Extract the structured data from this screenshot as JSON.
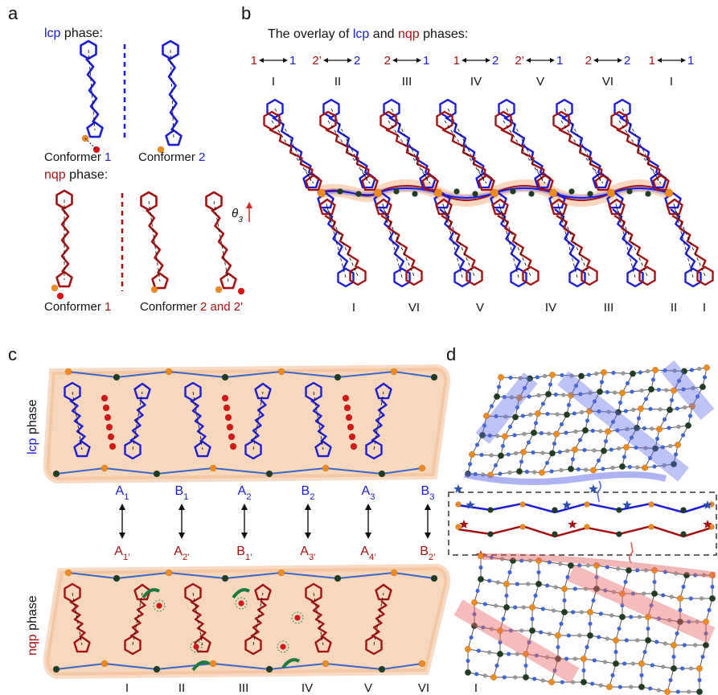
{
  "panels": {
    "a": {
      "label": "a",
      "lcp_heading": {
        "phase": "lcp",
        "text": "phase:"
      },
      "lcp_conformers": [
        {
          "text": "Conformer",
          "number": "1"
        },
        {
          "text": "Conformer",
          "number": "2"
        }
      ],
      "nqp_heading": {
        "phase": "nqp",
        "text": "phase:"
      },
      "nqp_conformers": [
        {
          "text": "Conformer",
          "number": "1"
        },
        {
          "text": "Conformer",
          "number": "2 and 2'"
        }
      ],
      "angle_label": {
        "symbol": "θ",
        "sub": "3"
      }
    },
    "b": {
      "label": "b",
      "title": {
        "prefix": "The overlay of",
        "phase1": "lcp",
        "middle": "and",
        "phase2": "nqp",
        "suffix": "phases:"
      },
      "pairs": [
        {
          "nqp": "1",
          "lcp": "1",
          "numeral": "I"
        },
        {
          "nqp": "2’",
          "lcp": "2",
          "numeral": "II"
        },
        {
          "nqp": "2",
          "lcp": "1",
          "numeral": "III"
        },
        {
          "nqp": "1",
          "lcp": "2",
          "numeral": "IV"
        },
        {
          "nqp": "2’",
          "lcp": "1",
          "numeral": "V"
        },
        {
          "nqp": "2",
          "lcp": "2",
          "numeral": "VI"
        },
        {
          "nqp": "1",
          "lcp": "1",
          "numeral": "I"
        }
      ],
      "bottom_numerals": [
        "I",
        "VI",
        "V",
        "IV",
        "III",
        "II",
        "I"
      ]
    },
    "c": {
      "label": "c",
      "lcp_side": {
        "phase": "lcp",
        "text": "phase"
      },
      "nqp_side": {
        "phase": "nqp",
        "text": "phase"
      },
      "lcp_sites": [
        {
          "letter": "A",
          "sub": "1"
        },
        {
          "letter": "B",
          "sub": "1"
        },
        {
          "letter": "A",
          "sub": "2"
        },
        {
          "letter": "B",
          "sub": "2"
        },
        {
          "letter": "A",
          "sub": "3"
        },
        {
          "letter": "B",
          "sub": "3"
        }
      ],
      "nqp_sites": [
        {
          "letter": "A",
          "sub": "1’"
        },
        {
          "letter": "A",
          "sub": "2’"
        },
        {
          "letter": "B",
          "sub": "1’"
        },
        {
          "letter": "A",
          "sub": "3’"
        },
        {
          "letter": "A",
          "sub": "4’"
        },
        {
          "letter": "B",
          "sub": "2’"
        }
      ],
      "numerals": [
        "I",
        "II",
        "III",
        "IV",
        "V",
        "VI",
        "I"
      ]
    },
    "d": {
      "label": "d"
    }
  }
}
